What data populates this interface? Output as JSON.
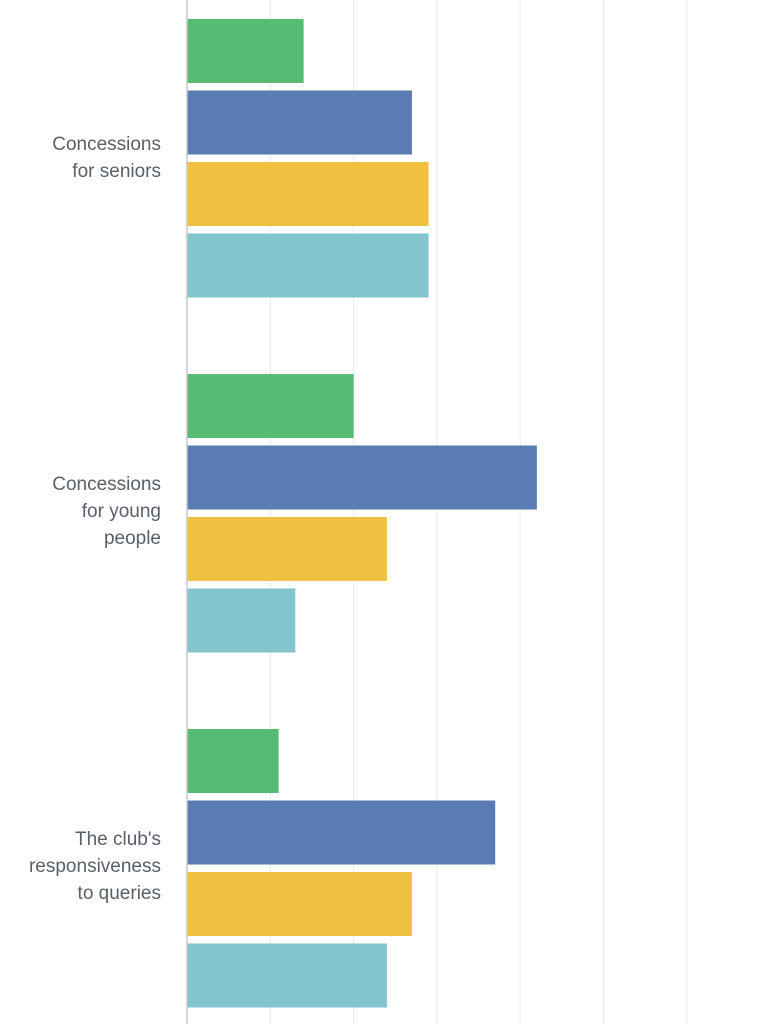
{
  "chart_data": {
    "type": "bar",
    "orientation": "horizontal",
    "categories": [
      "Concessions\nfor seniors",
      "Concessions\nfor young\npeople",
      "The club's\nresponsiveness\nto queries"
    ],
    "series": [
      {
        "color": "#57bb74",
        "values": [
          14,
          20,
          11
        ]
      },
      {
        "color": "#5a7bb3",
        "values": [
          27,
          42,
          37
        ]
      },
      {
        "color": "#f0c040",
        "values": [
          29,
          24,
          27
        ]
      },
      {
        "color": "#82c5cc",
        "values": [
          29,
          13,
          24
        ]
      }
    ],
    "xlim": [
      0,
      70
    ],
    "grid": true,
    "gridline_step": 10
  }
}
